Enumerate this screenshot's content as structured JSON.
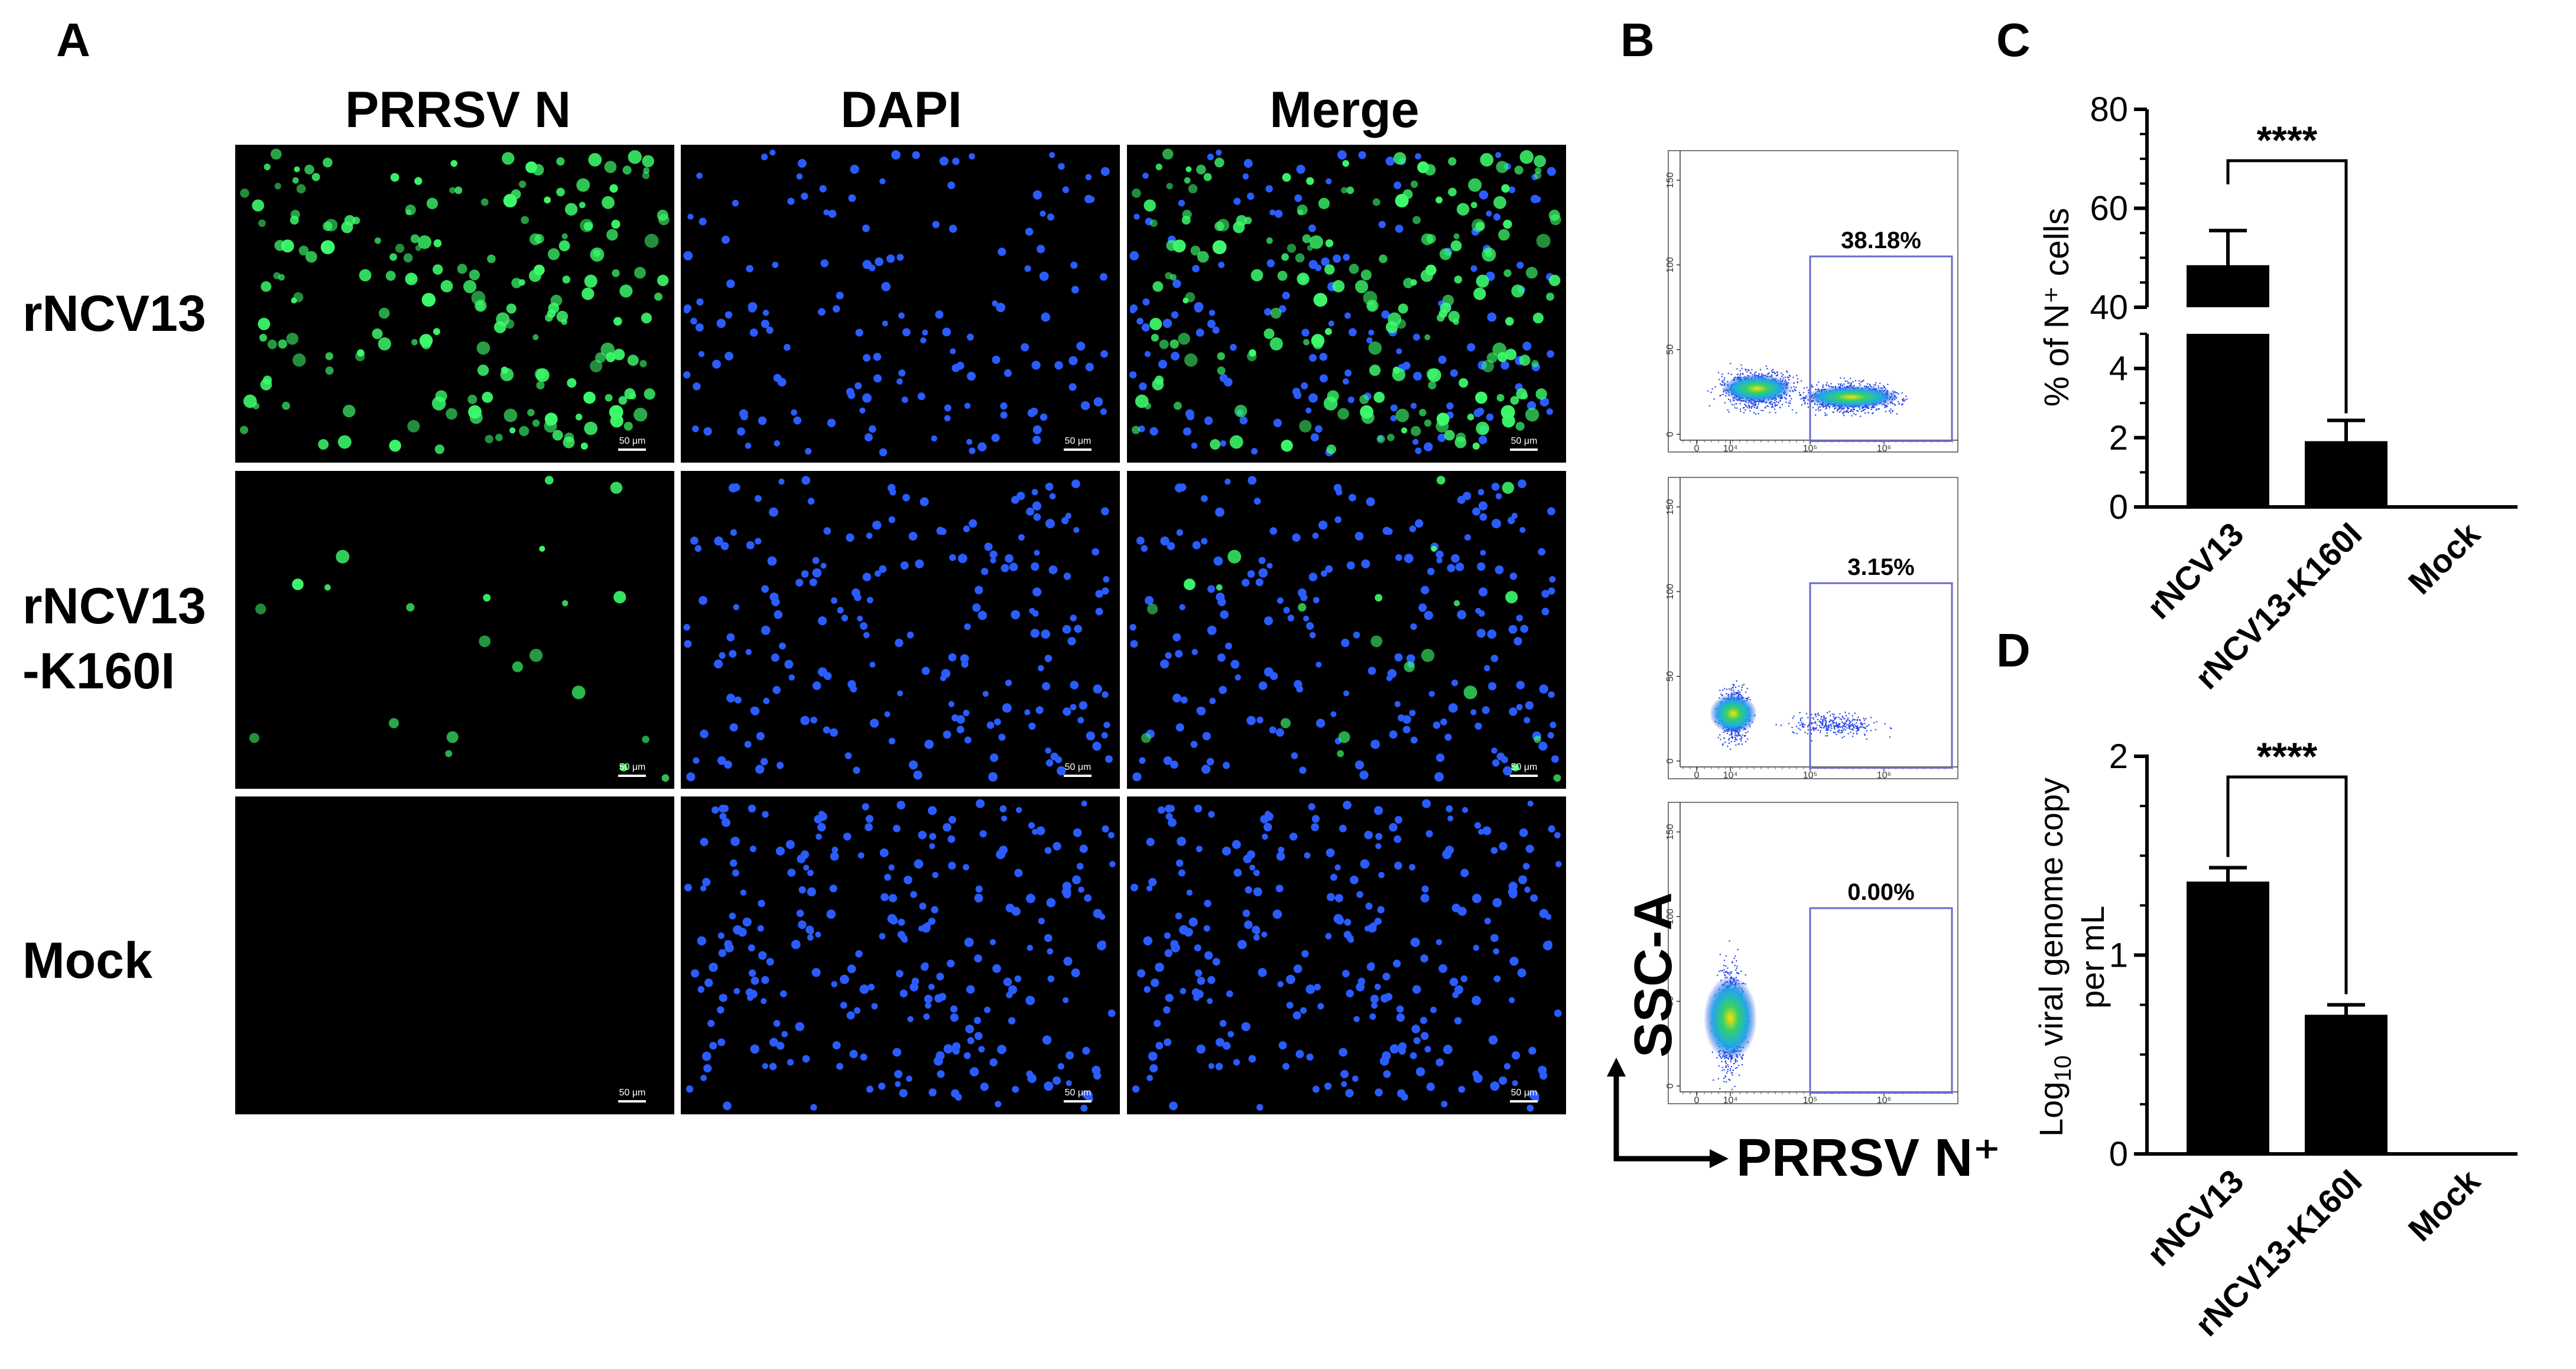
{
  "panel_labels": {
    "a": "A",
    "b": "B",
    "c": "C",
    "d": "D"
  },
  "panel_a": {
    "columns": [
      "PRRSV N",
      "DAPI",
      "Merge"
    ],
    "rows": [
      {
        "label_lines": [
          "rNCV13"
        ],
        "green_count": 200,
        "blue_count": 150
      },
      {
        "label_lines": [
          "rNCV13",
          "-K160I"
        ],
        "green_count": 22,
        "blue_count": 200
      },
      {
        "label_lines": [
          "Mock"
        ],
        "green_count": 0,
        "blue_count": 260
      }
    ],
    "scale_bar_label": "50 μm",
    "colors": {
      "background": "#000000",
      "green": "#3dfb6c",
      "blue": "#2a5cff"
    }
  },
  "panel_b": {
    "y_axis_label": "SSC-A",
    "x_axis_label": "PRRSV N⁺",
    "y_ticks": [
      "0",
      "50",
      "100",
      "150"
    ],
    "x_ticks": [
      "0",
      "10⁴",
      "10⁵",
      "10⁶"
    ],
    "gate_color": "#6a6ad0",
    "plots": [
      {
        "condition": "rNCV13",
        "gate_percent": "38.18%"
      },
      {
        "condition": "rNCV13-K160I",
        "gate_percent": "3.15%"
      },
      {
        "condition": "Mock",
        "gate_percent": "0.00%"
      }
    ]
  },
  "chart_data": [
    {
      "panel": "C",
      "type": "bar",
      "categories": [
        "rNCV13",
        "rNCV13-K160I",
        "Mock"
      ],
      "values": [
        48.5,
        1.9,
        0
      ],
      "errors": [
        7,
        0.6,
        0
      ],
      "ylabel": "% of N⁺ cells",
      "axis_break": {
        "lower": [
          0,
          5
        ],
        "upper": [
          40,
          80
        ]
      },
      "yticks_lower": [
        0,
        2,
        4
      ],
      "yticks_upper": [
        40,
        60,
        80
      ],
      "significance": "****"
    },
    {
      "panel": "D",
      "type": "bar",
      "categories": [
        "rNCV13",
        "rNCV13-K160I",
        "Mock"
      ],
      "values": [
        1.37,
        0.7,
        0
      ],
      "errors": [
        0.07,
        0.05,
        0
      ],
      "ylabel_line1": "Log10 viral genome copy",
      "ylabel_line2": "per mL",
      "ylim": [
        0,
        2
      ],
      "yticks": [
        0,
        1,
        2
      ],
      "significance": "****"
    }
  ]
}
